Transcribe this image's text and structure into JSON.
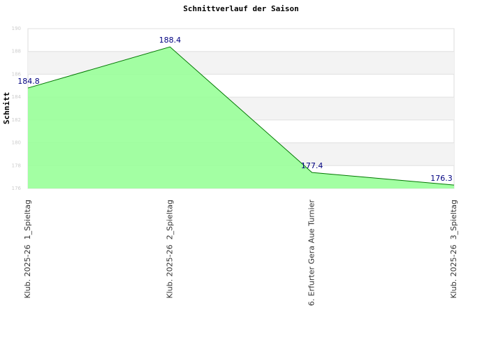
{
  "chart_data": {
    "type": "area",
    "title": "Schnittverlauf der Saison",
    "y_label": "Schnitt",
    "categories": [
      "Klub. 2025-26  1_Spieltag",
      "Klub. 2025-26  2_Spieltag",
      "6. Erfurter Gera Aue Turnier",
      "Klub. 2025-26  3_Spieltag"
    ],
    "values": [
      184.8,
      188.4,
      177.4,
      176.3
    ],
    "color": "#99ff99",
    "line_color": "#007700",
    "label_color": "#000080",
    "ylim": [
      176,
      190
    ],
    "yticks": [
      176,
      178,
      180,
      182,
      184,
      186,
      188,
      190
    ],
    "grid": true
  }
}
